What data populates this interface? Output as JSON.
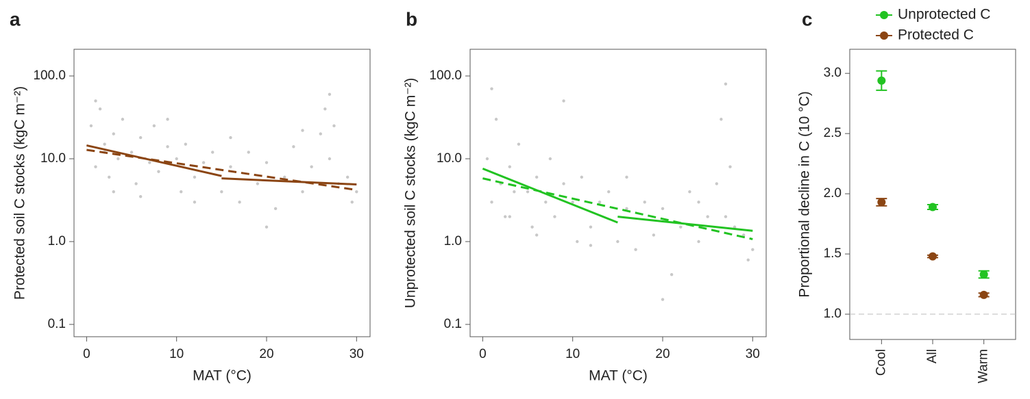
{
  "chart_data": [
    {
      "type": "scatter",
      "panel_label": "a",
      "x_label": "MAT (°C)",
      "y_label": "Protected soil C stocks (kgC m⁻²)",
      "log_y": true,
      "xlim": [
        -1.4,
        31.5
      ],
      "ylim": [
        0.071,
        210
      ],
      "xticks": [
        0,
        10,
        20,
        30
      ],
      "yticks": [
        0.1,
        {
          "value": 1,
          "label": "1.0"
        },
        {
          "value": 10,
          "label": "10.0"
        },
        {
          "value": 100,
          "label": "100.0"
        }
      ],
      "points": {
        "color": "#c8c8c8",
        "x": [
          0.5,
          1,
          1.5,
          2,
          2.5,
          3,
          3.5,
          4,
          5,
          5.5,
          6,
          7,
          7.5,
          8,
          9,
          10,
          10.5,
          11,
          12,
          13,
          14,
          15,
          16,
          17,
          18,
          19,
          20,
          21,
          22,
          23,
          24,
          25,
          26,
          26.5,
          27,
          27.5,
          28,
          29,
          29.5,
          30,
          1,
          3,
          6,
          9,
          12,
          16,
          20,
          24,
          27,
          2
        ],
        "y": [
          25,
          8,
          40,
          15,
          6,
          20,
          10,
          30,
          12,
          5,
          18,
          9,
          25,
          7,
          14,
          10,
          4,
          15,
          6,
          9,
          12,
          4,
          8,
          3,
          12,
          5,
          9,
          2.5,
          6,
          14,
          4,
          8,
          20,
          40,
          10,
          25,
          5,
          6,
          3,
          4,
          50,
          4,
          3.5,
          30,
          3,
          18,
          1.5,
          22,
          60,
          12
        ]
      },
      "series": [
        {
          "color": "#8b4513",
          "dash": false,
          "x": [
            0,
            15
          ],
          "values": [
            14.5,
            6.2
          ]
        },
        {
          "color": "#8b4513",
          "dash": false,
          "x": [
            15,
            30
          ],
          "values": [
            5.8,
            4.9
          ]
        },
        {
          "color": "#8b4513",
          "dash": true,
          "x": [
            0,
            30
          ],
          "values": [
            12.8,
            4.2
          ]
        }
      ]
    },
    {
      "type": "scatter",
      "panel_label": "b",
      "x_label": "MAT (°C)",
      "y_label": "Unprotected soil C stocks (kgC m⁻²)",
      "log_y": true,
      "xlim": [
        -1.4,
        31.5
      ],
      "ylim": [
        0.071,
        210
      ],
      "xticks": [
        0,
        10,
        20,
        30
      ],
      "yticks": [
        0.1,
        {
          "value": 1,
          "label": "1.0"
        },
        {
          "value": 10,
          "label": "10.0"
        },
        {
          "value": 100,
          "label": "100.0"
        }
      ],
      "points": {
        "color": "#c8c8c8",
        "x": [
          0.5,
          1,
          1.5,
          2,
          2.5,
          3,
          3.5,
          4,
          5,
          5.5,
          6,
          7,
          7.5,
          8,
          9,
          10,
          10.5,
          11,
          12,
          13,
          14,
          15,
          16,
          17,
          18,
          19,
          20,
          21,
          22,
          23,
          24,
          25,
          26,
          26.5,
          27,
          27.5,
          28,
          29,
          29.5,
          30,
          1,
          3,
          6,
          9,
          12,
          16,
          20,
          24,
          27,
          2
        ],
        "y": [
          10,
          3,
          30,
          5,
          2,
          8,
          4,
          15,
          4,
          1.5,
          6,
          3,
          10,
          2,
          5,
          3,
          1,
          6,
          1.5,
          3,
          4,
          1,
          2.5,
          0.8,
          3,
          1.2,
          2.5,
          0.4,
          1.5,
          4,
          1,
          2,
          5,
          30,
          2,
          8,
          1.5,
          1.2,
          0.6,
          0.8,
          70,
          2,
          1.2,
          50,
          0.9,
          6,
          0.2,
          3,
          80,
          5
        ]
      },
      "series": [
        {
          "color": "#22c322",
          "dash": false,
          "x": [
            0,
            15
          ],
          "values": [
            7.6,
            1.7
          ]
        },
        {
          "color": "#22c322",
          "dash": false,
          "x": [
            15,
            30
          ],
          "values": [
            2.0,
            1.35
          ]
        },
        {
          "color": "#22c322",
          "dash": true,
          "x": [
            0,
            30
          ],
          "values": [
            5.8,
            1.07
          ]
        }
      ]
    },
    {
      "type": "errorbar",
      "panel_label": "c",
      "y_label": "Proportional decline in C (10 °C)",
      "categories": [
        "Cool",
        "All",
        "Warm"
      ],
      "ylim": [
        0.79,
        3.2
      ],
      "reference_line": 1,
      "yticks": [
        {
          "value": 1,
          "label": "1.0"
        },
        1.5,
        {
          "value": 2,
          "label": "2.0"
        },
        2.5,
        {
          "value": 3,
          "label": "3.0"
        }
      ],
      "series": [
        {
          "name": "Unprotected C",
          "color": "#22c322",
          "values": [
            2.94,
            1.89,
            1.33
          ],
          "errors": [
            0.08,
            0.02,
            0.03
          ]
        },
        {
          "name": "Protected C",
          "color": "#8b4513",
          "values": [
            1.93,
            1.48,
            1.16
          ],
          "errors": [
            0.03,
            0.01,
            0.015
          ]
        }
      ]
    }
  ]
}
